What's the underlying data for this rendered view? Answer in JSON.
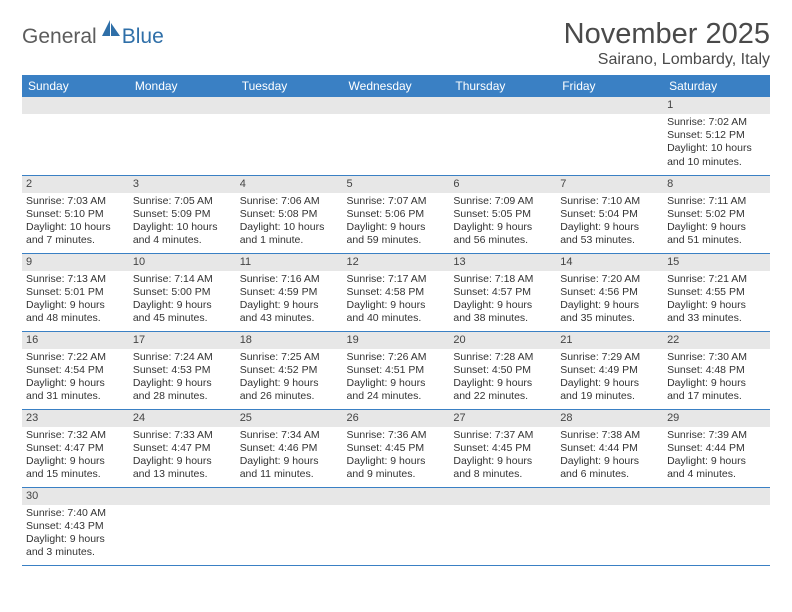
{
  "logo": {
    "general": "General",
    "blue": "Blue"
  },
  "title": "November 2025",
  "location": "Sairano, Lombardy, Italy",
  "colors": {
    "header_bg": "#3a80c4",
    "header_text": "#ffffff",
    "daynum_bg": "#e7e7e7",
    "border": "#3a80c4",
    "title_color": "#4a4a4a",
    "logo_general": "#5c5c5c",
    "logo_blue": "#2f6fa8"
  },
  "weekdays": [
    "Sunday",
    "Monday",
    "Tuesday",
    "Wednesday",
    "Thursday",
    "Friday",
    "Saturday"
  ],
  "weeks": [
    [
      {
        "n": "",
        "sr": "",
        "ss": "",
        "dl": ""
      },
      {
        "n": "",
        "sr": "",
        "ss": "",
        "dl": ""
      },
      {
        "n": "",
        "sr": "",
        "ss": "",
        "dl": ""
      },
      {
        "n": "",
        "sr": "",
        "ss": "",
        "dl": ""
      },
      {
        "n": "",
        "sr": "",
        "ss": "",
        "dl": ""
      },
      {
        "n": "",
        "sr": "",
        "ss": "",
        "dl": ""
      },
      {
        "n": "1",
        "sr": "Sunrise: 7:02 AM",
        "ss": "Sunset: 5:12 PM",
        "dl": "Daylight: 10 hours and 10 minutes."
      }
    ],
    [
      {
        "n": "2",
        "sr": "Sunrise: 7:03 AM",
        "ss": "Sunset: 5:10 PM",
        "dl": "Daylight: 10 hours and 7 minutes."
      },
      {
        "n": "3",
        "sr": "Sunrise: 7:05 AM",
        "ss": "Sunset: 5:09 PM",
        "dl": "Daylight: 10 hours and 4 minutes."
      },
      {
        "n": "4",
        "sr": "Sunrise: 7:06 AM",
        "ss": "Sunset: 5:08 PM",
        "dl": "Daylight: 10 hours and 1 minute."
      },
      {
        "n": "5",
        "sr": "Sunrise: 7:07 AM",
        "ss": "Sunset: 5:06 PM",
        "dl": "Daylight: 9 hours and 59 minutes."
      },
      {
        "n": "6",
        "sr": "Sunrise: 7:09 AM",
        "ss": "Sunset: 5:05 PM",
        "dl": "Daylight: 9 hours and 56 minutes."
      },
      {
        "n": "7",
        "sr": "Sunrise: 7:10 AM",
        "ss": "Sunset: 5:04 PM",
        "dl": "Daylight: 9 hours and 53 minutes."
      },
      {
        "n": "8",
        "sr": "Sunrise: 7:11 AM",
        "ss": "Sunset: 5:02 PM",
        "dl": "Daylight: 9 hours and 51 minutes."
      }
    ],
    [
      {
        "n": "9",
        "sr": "Sunrise: 7:13 AM",
        "ss": "Sunset: 5:01 PM",
        "dl": "Daylight: 9 hours and 48 minutes."
      },
      {
        "n": "10",
        "sr": "Sunrise: 7:14 AM",
        "ss": "Sunset: 5:00 PM",
        "dl": "Daylight: 9 hours and 45 minutes."
      },
      {
        "n": "11",
        "sr": "Sunrise: 7:16 AM",
        "ss": "Sunset: 4:59 PM",
        "dl": "Daylight: 9 hours and 43 minutes."
      },
      {
        "n": "12",
        "sr": "Sunrise: 7:17 AM",
        "ss": "Sunset: 4:58 PM",
        "dl": "Daylight: 9 hours and 40 minutes."
      },
      {
        "n": "13",
        "sr": "Sunrise: 7:18 AM",
        "ss": "Sunset: 4:57 PM",
        "dl": "Daylight: 9 hours and 38 minutes."
      },
      {
        "n": "14",
        "sr": "Sunrise: 7:20 AM",
        "ss": "Sunset: 4:56 PM",
        "dl": "Daylight: 9 hours and 35 minutes."
      },
      {
        "n": "15",
        "sr": "Sunrise: 7:21 AM",
        "ss": "Sunset: 4:55 PM",
        "dl": "Daylight: 9 hours and 33 minutes."
      }
    ],
    [
      {
        "n": "16",
        "sr": "Sunrise: 7:22 AM",
        "ss": "Sunset: 4:54 PM",
        "dl": "Daylight: 9 hours and 31 minutes."
      },
      {
        "n": "17",
        "sr": "Sunrise: 7:24 AM",
        "ss": "Sunset: 4:53 PM",
        "dl": "Daylight: 9 hours and 28 minutes."
      },
      {
        "n": "18",
        "sr": "Sunrise: 7:25 AM",
        "ss": "Sunset: 4:52 PM",
        "dl": "Daylight: 9 hours and 26 minutes."
      },
      {
        "n": "19",
        "sr": "Sunrise: 7:26 AM",
        "ss": "Sunset: 4:51 PM",
        "dl": "Daylight: 9 hours and 24 minutes."
      },
      {
        "n": "20",
        "sr": "Sunrise: 7:28 AM",
        "ss": "Sunset: 4:50 PM",
        "dl": "Daylight: 9 hours and 22 minutes."
      },
      {
        "n": "21",
        "sr": "Sunrise: 7:29 AM",
        "ss": "Sunset: 4:49 PM",
        "dl": "Daylight: 9 hours and 19 minutes."
      },
      {
        "n": "22",
        "sr": "Sunrise: 7:30 AM",
        "ss": "Sunset: 4:48 PM",
        "dl": "Daylight: 9 hours and 17 minutes."
      }
    ],
    [
      {
        "n": "23",
        "sr": "Sunrise: 7:32 AM",
        "ss": "Sunset: 4:47 PM",
        "dl": "Daylight: 9 hours and 15 minutes."
      },
      {
        "n": "24",
        "sr": "Sunrise: 7:33 AM",
        "ss": "Sunset: 4:47 PM",
        "dl": "Daylight: 9 hours and 13 minutes."
      },
      {
        "n": "25",
        "sr": "Sunrise: 7:34 AM",
        "ss": "Sunset: 4:46 PM",
        "dl": "Daylight: 9 hours and 11 minutes."
      },
      {
        "n": "26",
        "sr": "Sunrise: 7:36 AM",
        "ss": "Sunset: 4:45 PM",
        "dl": "Daylight: 9 hours and 9 minutes."
      },
      {
        "n": "27",
        "sr": "Sunrise: 7:37 AM",
        "ss": "Sunset: 4:45 PM",
        "dl": "Daylight: 9 hours and 8 minutes."
      },
      {
        "n": "28",
        "sr": "Sunrise: 7:38 AM",
        "ss": "Sunset: 4:44 PM",
        "dl": "Daylight: 9 hours and 6 minutes."
      },
      {
        "n": "29",
        "sr": "Sunrise: 7:39 AM",
        "ss": "Sunset: 4:44 PM",
        "dl": "Daylight: 9 hours and 4 minutes."
      }
    ],
    [
      {
        "n": "30",
        "sr": "Sunrise: 7:40 AM",
        "ss": "Sunset: 4:43 PM",
        "dl": "Daylight: 9 hours and 3 minutes."
      },
      {
        "n": "",
        "sr": "",
        "ss": "",
        "dl": ""
      },
      {
        "n": "",
        "sr": "",
        "ss": "",
        "dl": ""
      },
      {
        "n": "",
        "sr": "",
        "ss": "",
        "dl": ""
      },
      {
        "n": "",
        "sr": "",
        "ss": "",
        "dl": ""
      },
      {
        "n": "",
        "sr": "",
        "ss": "",
        "dl": ""
      },
      {
        "n": "",
        "sr": "",
        "ss": "",
        "dl": ""
      }
    ]
  ]
}
